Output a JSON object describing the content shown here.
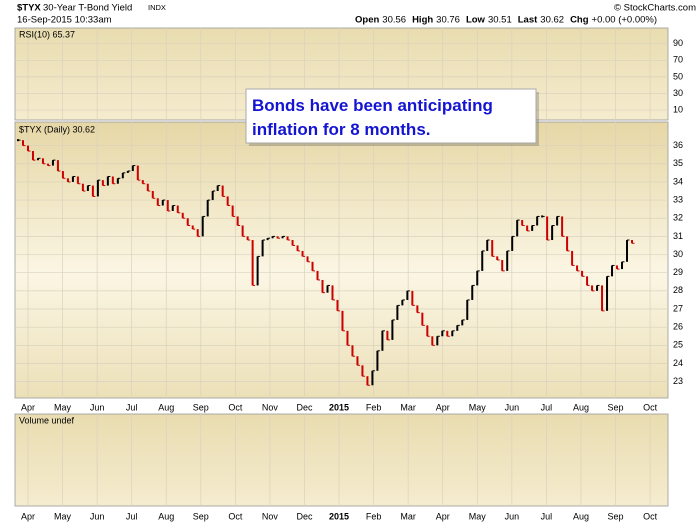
{
  "header": {
    "symbol": "$TYX",
    "name": "30-Year T-Bond Yield",
    "exchange": "INDX",
    "date": "16-Sep-2015 10:33am",
    "quote": [
      {
        "label": "Open",
        "value": 30.56
      },
      {
        "label": "High",
        "value": 30.76
      },
      {
        "label": "Low",
        "value": 30.51
      },
      {
        "label": "Last",
        "value": 30.62
      },
      {
        "label": "Chg",
        "value": "+0.00 (+0.00%)"
      }
    ],
    "copyright": "© StockCharts.com"
  },
  "rsi_panel": {
    "label": "RSI(10) 65.37",
    "ylim": [
      -2,
      109
    ],
    "yticks": [
      90,
      70,
      50,
      30,
      10
    ]
  },
  "volume_panel": {
    "label": "Volume undef"
  },
  "chart_data": {
    "type": "ohlc",
    "panel_label": "$TYX (Daily) 30.62",
    "annotation": [
      "Bonds have been anticipating",
      "inflation for 8 months."
    ],
    "x_labels": [
      "Apr",
      "May",
      "Jun",
      "Jul",
      "Aug",
      "Sep",
      "Oct",
      "Nov",
      "Dec",
      "2015",
      "Feb",
      "Mar",
      "Apr",
      "May",
      "Jun",
      "Jul",
      "Aug",
      "Sep",
      "Oct"
    ],
    "up_color": "#000000",
    "down_color": "#cc0000",
    "grid": true,
    "ylim": [
      22.1,
      37.3
    ],
    "yticks": [
      23,
      24,
      25,
      26,
      27,
      28,
      29,
      30,
      31,
      32,
      33,
      34,
      35,
      36
    ],
    "series": [
      {
        "name": "$TYX",
        "values": [
          36.3,
          36.0,
          35.7,
          35.2,
          35.3,
          35.0,
          34.9,
          35.2,
          34.6,
          34.2,
          34.0,
          34.3,
          33.9,
          33.5,
          33.8,
          33.2,
          34.1,
          33.8,
          34.3,
          33.9,
          34.2,
          34.5,
          34.6,
          34.9,
          34.1,
          33.9,
          33.5,
          33.1,
          32.7,
          33.0,
          32.4,
          32.7,
          32.3,
          32.0,
          31.6,
          31.4,
          31.0,
          32.1,
          33.0,
          33.5,
          33.8,
          33.2,
          32.7,
          32.1,
          31.6,
          31.0,
          30.8,
          28.3,
          29.9,
          30.8,
          30.9,
          31.0,
          30.9,
          31.0,
          30.8,
          30.5,
          30.2,
          29.9,
          29.6,
          29.1,
          28.6,
          27.9,
          28.3,
          27.5,
          26.9,
          25.8,
          25.0,
          24.4,
          23.9,
          23.3,
          22.8,
          23.6,
          24.7,
          25.8,
          25.3,
          26.4,
          27.2,
          27.5,
          28.0,
          27.2,
          26.8,
          26.1,
          25.5,
          25.0,
          25.5,
          25.8,
          25.5,
          25.8,
          26.1,
          26.4,
          27.5,
          28.3,
          29.1,
          30.2,
          30.8,
          29.9,
          29.7,
          29.1,
          30.2,
          31.0,
          31.9,
          31.6,
          31.3,
          31.6,
          32.1,
          32.1,
          30.8,
          31.6,
          32.1,
          31.0,
          30.2,
          29.4,
          29.1,
          28.8,
          28.3,
          28.0,
          28.3,
          26.9,
          28.8,
          29.4,
          29.2,
          29.6,
          30.8,
          30.62
        ]
      }
    ]
  }
}
